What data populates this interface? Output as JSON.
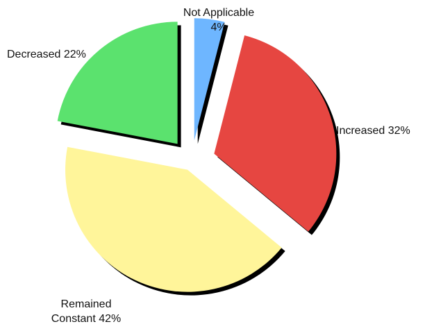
{
  "chart_data": {
    "type": "pie",
    "exploded": true,
    "shadow": true,
    "slices": [
      {
        "name": "Not Applicable",
        "value": 4,
        "color": "#6EB6FF",
        "label_lines": [
          "Not Applicable",
          "4%"
        ]
      },
      {
        "name": "Increased",
        "value": 32,
        "color": "#E64641",
        "label_lines": [
          "Increased 32%"
        ]
      },
      {
        "name": "Remained Constant",
        "value": 42,
        "color": "#FFF59A",
        "label_lines": [
          "Remained",
          "Constant 42%"
        ]
      },
      {
        "name": "Decreased",
        "value": 22,
        "color": "#5BE26E",
        "label_lines": [
          "Decreased 22%"
        ]
      }
    ]
  }
}
